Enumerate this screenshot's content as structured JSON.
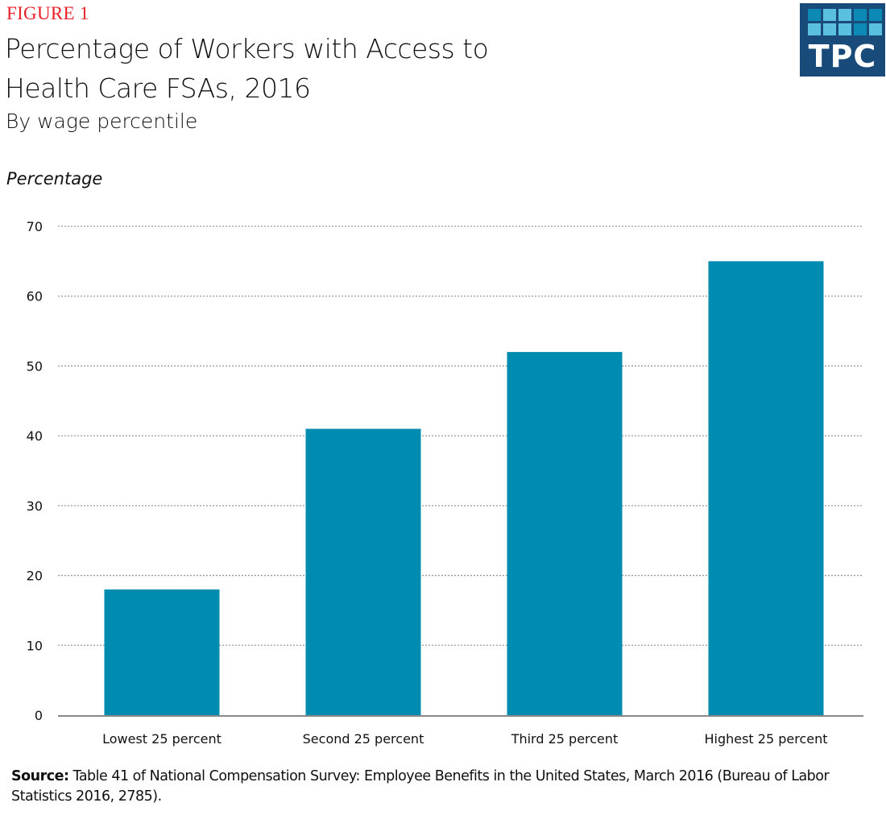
{
  "figure_label": "FIGURE 1",
  "title": "Percentage of Workers with Access to Health Care FSAs, 2016",
  "subtitle": "By wage percentile",
  "logo": {
    "text": "TPC",
    "background": "#184b7a",
    "squares": [
      "#0c8ab5",
      "#5bbfdf",
      "#5bbfdf",
      "#0c8ab5",
      "#0c8ab5",
      "#5bbfdf",
      "#5bbfdf",
      "#5bbfdf",
      "#0c8ab5",
      "#5bbfdf"
    ]
  },
  "source": {
    "label": "Source:",
    "text": " Table 41 of National Compensation Survey: Employee Benefits in the United States, March 2016 (Bureau of Labor Statistics 2016, 2785)."
  },
  "chart_data": {
    "type": "bar",
    "title": "Percentage of Workers with Access to Health Care FSAs, 2016",
    "subtitle": "By wage percentile",
    "xlabel": "",
    "ylabel": "Percentage",
    "categories": [
      "Lowest 25 percent",
      "Second 25 percent",
      "Third 25 percent",
      "Highest 25 percent"
    ],
    "values": [
      18,
      41,
      52,
      65
    ],
    "ylim": [
      0,
      70
    ],
    "yticks": [
      0,
      10,
      20,
      30,
      40,
      50,
      60,
      70
    ],
    "grid": true,
    "legend": "none",
    "bar_color": "#008bb0",
    "grid_color": "#9a9a9a",
    "axis_color": "#888888"
  }
}
